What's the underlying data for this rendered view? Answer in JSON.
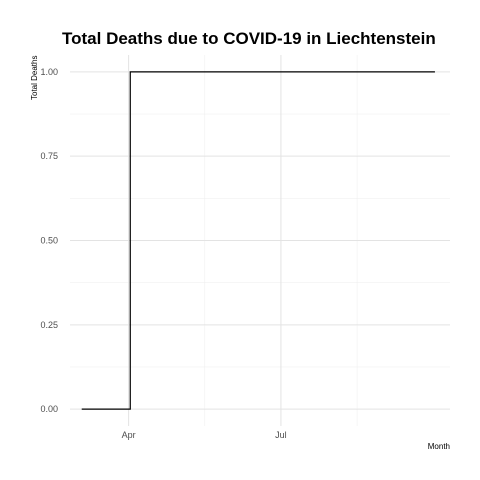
{
  "chart_data": {
    "type": "line",
    "title": "Total Deaths due to COVID-19 in Liechtenstein",
    "xlabel": "Month",
    "ylabel": "Total Deaths",
    "x_ticks": [
      {
        "date": "2020-04-01",
        "label": "Apr"
      },
      {
        "date": "2020-07-01",
        "label": "Jul"
      }
    ],
    "y_ticks": [
      {
        "value": 0,
        "label": "0.00"
      },
      {
        "value": 0.25,
        "label": "0.25"
      },
      {
        "value": 0.5,
        "label": "0.50"
      },
      {
        "value": 0.75,
        "label": "0.75"
      },
      {
        "value": 1,
        "label": "1.00"
      }
    ],
    "xlim": [
      "2020-02-26",
      "2020-10-10"
    ],
    "ylim": [
      -0.05,
      1.05
    ],
    "grid": true,
    "step": true,
    "series": [
      {
        "color": "#000000",
        "points": [
          {
            "x": "2020-03-04",
            "y": 0
          },
          {
            "x": "2020-04-01",
            "y": 0
          },
          {
            "x": "2020-04-02",
            "y": 1
          },
          {
            "x": "2020-10-01",
            "y": 1
          }
        ]
      }
    ]
  }
}
